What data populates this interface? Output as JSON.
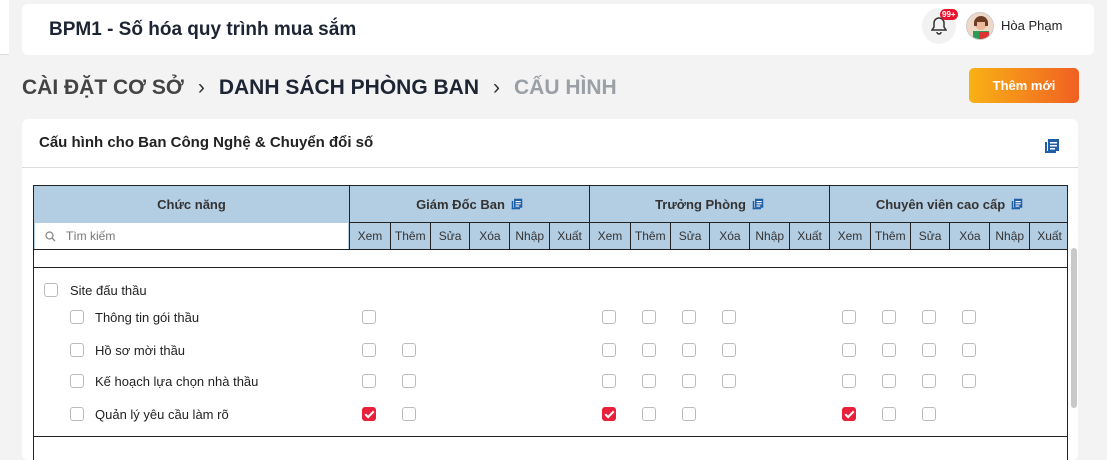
{
  "header": {
    "app_title": "BPM1 - Số hóa quy trình mua sắm",
    "notification_badge": "99+",
    "user_name": "Hòa Phạm"
  },
  "breadcrumb": [
    "CÀI ĐẶT CƠ SỞ",
    "DANH SÁCH PHÒNG BAN",
    "CẤU HÌNH"
  ],
  "add_button": "Thêm mới",
  "card_title": "Cấu hình cho Ban Công Nghệ & Chuyển đổi số",
  "table": {
    "function_header": "Chức năng",
    "search_placeholder": "Tìm kiếm",
    "permissions": [
      "Xem",
      "Thêm",
      "Sửa",
      "Xóa",
      "Nhập",
      "Xuất"
    ],
    "roles": [
      "Giám Đốc Ban",
      "Trưởng Phòng",
      "Chuyên viên cao cấp"
    ],
    "group": {
      "label": "Site đấu thầu",
      "checked": false
    },
    "rows": [
      {
        "label": "Thông tin gói thầu",
        "checked": false,
        "perms": [
          [
            0,
            null,
            null,
            null,
            null,
            null
          ],
          [
            0,
            0,
            0,
            0,
            null,
            null
          ],
          [
            0,
            0,
            0,
            0,
            null,
            null
          ]
        ]
      },
      {
        "label": "Hồ sơ mời thầu",
        "checked": false,
        "perms": [
          [
            0,
            0,
            null,
            null,
            null,
            null
          ],
          [
            0,
            0,
            0,
            0,
            null,
            null
          ],
          [
            0,
            0,
            0,
            0,
            null,
            null
          ]
        ]
      },
      {
        "label": "Kế hoạch lựa chọn nhà thầu",
        "checked": false,
        "perms": [
          [
            0,
            0,
            null,
            null,
            null,
            null
          ],
          [
            0,
            0,
            0,
            0,
            null,
            null
          ],
          [
            0,
            0,
            0,
            0,
            null,
            null
          ]
        ]
      },
      {
        "label": "Quản lý yêu cầu làm rõ",
        "checked": false,
        "perms": [
          [
            1,
            0,
            null,
            null,
            null,
            null
          ],
          [
            1,
            0,
            0,
            null,
            null,
            null
          ],
          [
            1,
            0,
            0,
            null,
            null,
            null
          ]
        ]
      }
    ]
  },
  "colors": {
    "accent": "#e8213b",
    "header_bg": "#b3cde3",
    "button_gradient": [
      "#f9b115",
      "#f06022"
    ],
    "icon_blue": "#1f5fa8"
  }
}
